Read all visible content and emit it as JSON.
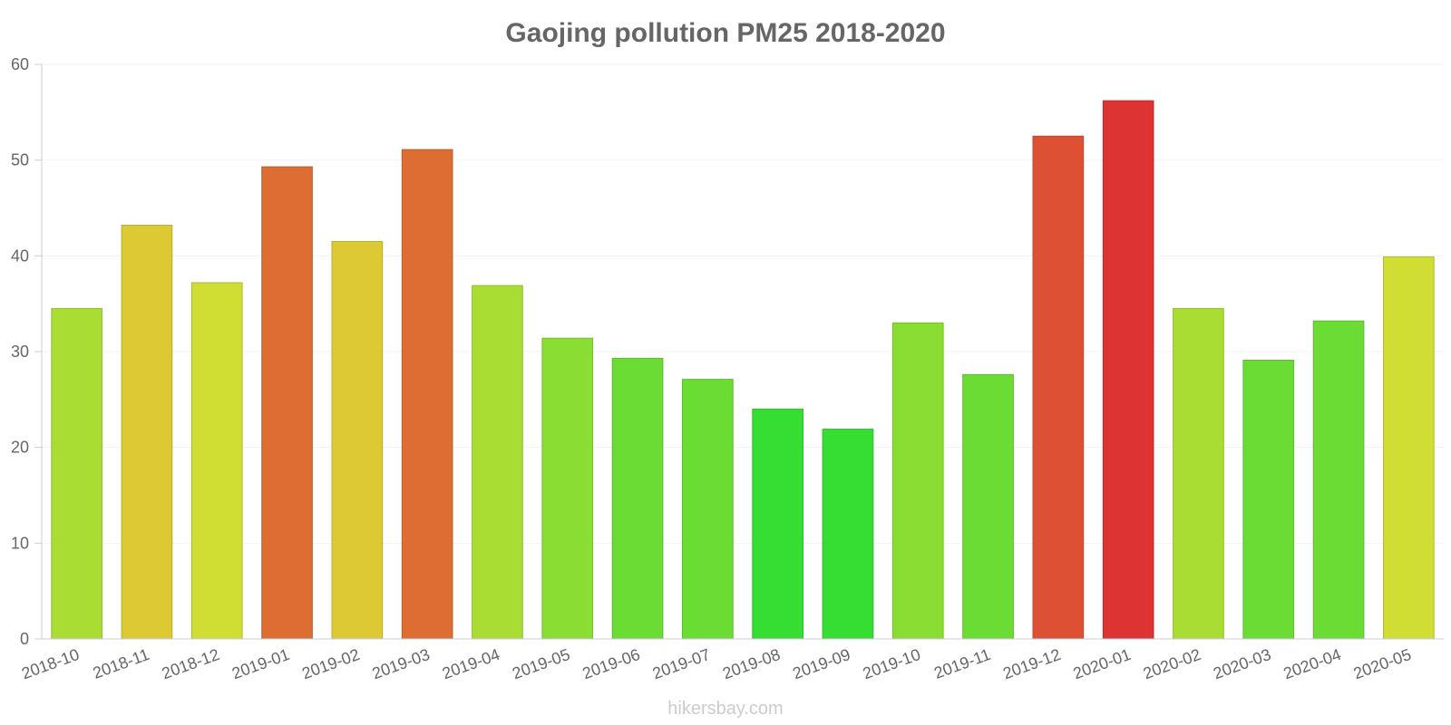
{
  "chart_data": {
    "type": "bar",
    "title": "Gaojing pollution PM25 2018-2020",
    "xlabel": "",
    "ylabel": "",
    "ylim": [
      0,
      60
    ],
    "yticks": [
      "0",
      "10",
      "20",
      "30",
      "40",
      "50",
      "60"
    ],
    "grid": true,
    "categories": [
      "2018-10",
      "2018-11",
      "2018-12",
      "2019-01",
      "2019-02",
      "2019-03",
      "2019-04",
      "2019-05",
      "2019-06",
      "2019-07",
      "2019-08",
      "2019-09",
      "2019-10",
      "2019-11",
      "2019-12",
      "2020-01",
      "2020-02",
      "2020-03",
      "2020-04",
      "2020-05"
    ],
    "values": [
      34.5,
      43.2,
      37.2,
      49.3,
      41.5,
      51.1,
      36.9,
      31.4,
      29.3,
      27.1,
      24.0,
      21.9,
      33.0,
      27.6,
      52.5,
      56.2,
      34.5,
      29.1,
      33.2,
      39.9
    ],
    "colors": [
      "#aadd33",
      "#ddc933",
      "#d0dd33",
      "#dd6d33",
      "#ddc933",
      "#dd6d33",
      "#aadd33",
      "#89dd33",
      "#6adc33",
      "#6adc33",
      "#36dd33",
      "#36dd33",
      "#89dd33",
      "#6adc33",
      "#dd5033",
      "#dd3333",
      "#aadd33",
      "#6adc33",
      "#6adc33",
      "#d0dd33"
    ]
  },
  "credit": "hikersbay.com"
}
